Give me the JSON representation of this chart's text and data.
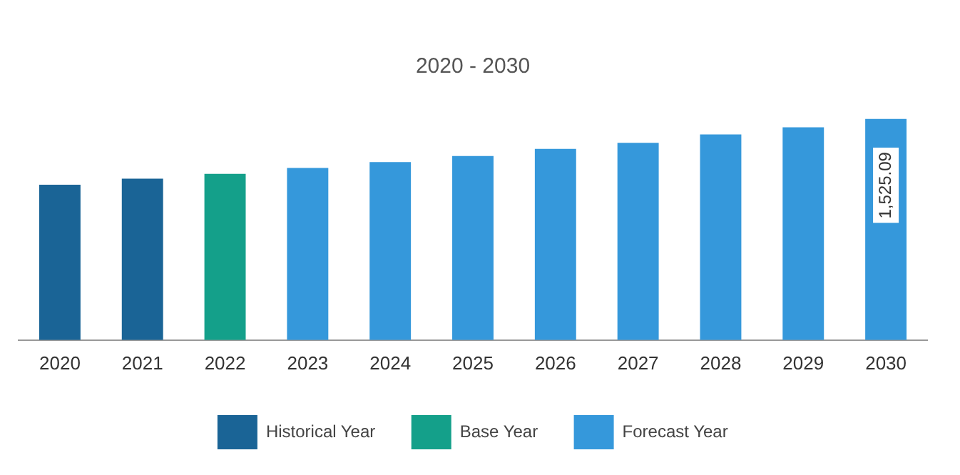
{
  "chart_data": {
    "type": "bar",
    "title": "2020 - 2030",
    "categories": [
      "2020",
      "2021",
      "2022",
      "2023",
      "2024",
      "2025",
      "2026",
      "2027",
      "2028",
      "2029",
      "2030"
    ],
    "series": [
      {
        "name": "Historical Year",
        "color": "#1a6496",
        "values": [
          1072,
          1113,
          null,
          null,
          null,
          null,
          null,
          null,
          null,
          null,
          null
        ]
      },
      {
        "name": "Base Year",
        "color": "#14a08a",
        "values": [
          null,
          null,
          1146,
          null,
          null,
          null,
          null,
          null,
          null,
          null,
          null
        ]
      },
      {
        "name": "Forecast Year",
        "color": "#3598db",
        "values": [
          null,
          null,
          null,
          1187,
          1228,
          1270,
          1319,
          1360,
          1418,
          1467,
          1525.09
        ],
        "value_labels": [
          null,
          null,
          null,
          null,
          null,
          null,
          null,
          null,
          null,
          null,
          "1,525.09"
        ]
      }
    ],
    "grid": false,
    "legend": "bottom"
  }
}
